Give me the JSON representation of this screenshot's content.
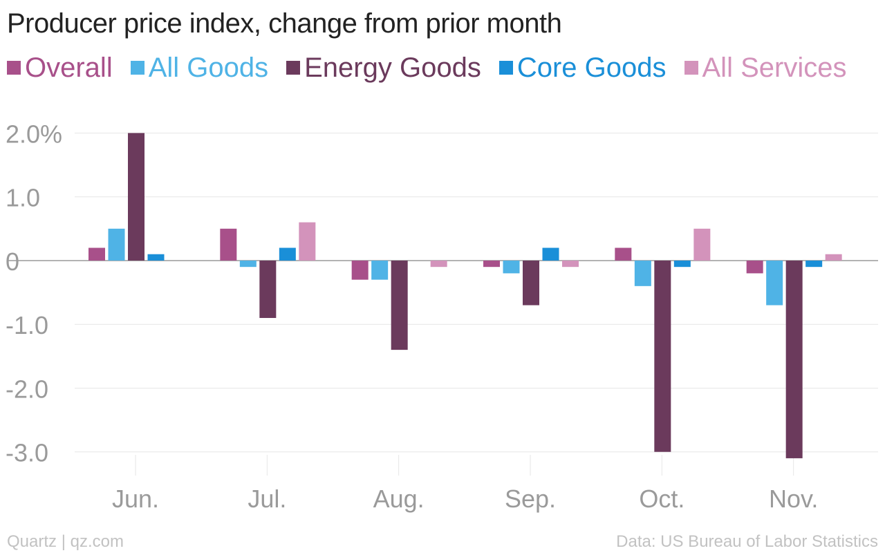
{
  "chart_data": {
    "type": "bar",
    "title": "Producer price index, change from prior month",
    "categories": [
      "Jun.",
      "Jul.",
      "Aug.",
      "Sep.",
      "Oct.",
      "Nov."
    ],
    "series": [
      {
        "name": "Overall",
        "color": "#a8508a",
        "values": [
          0.2,
          0.5,
          -0.3,
          -0.1,
          0.2,
          -0.2
        ]
      },
      {
        "name": "All Goods",
        "color": "#4fb3e6",
        "values": [
          0.5,
          -0.1,
          -0.3,
          -0.2,
          -0.4,
          -0.7
        ]
      },
      {
        "name": "Energy Goods",
        "color": "#6b3a5c",
        "values": [
          2.0,
          -0.9,
          -1.4,
          -0.7,
          -3.0,
          -3.1
        ]
      },
      {
        "name": "Core Goods",
        "color": "#1a8fd8",
        "values": [
          0.1,
          0.2,
          0.0,
          0.2,
          -0.1,
          -0.1
        ]
      },
      {
        "name": "All Services",
        "color": "#d393bb",
        "values": [
          0.0,
          0.6,
          -0.1,
          -0.1,
          0.5,
          0.1
        ]
      }
    ],
    "yticks": [
      {
        "value": 2.0,
        "label": "2.0%"
      },
      {
        "value": 1.0,
        "label": "1.0"
      },
      {
        "value": 0,
        "label": "0"
      },
      {
        "value": -1.0,
        "label": "-1.0"
      },
      {
        "value": -2.0,
        "label": "-2.0"
      },
      {
        "value": -3.0,
        "label": "-3.0"
      }
    ],
    "ylim": [
      -3.35,
      2.2
    ],
    "xlabel": "",
    "ylabel": "",
    "grid": true,
    "legend_position": "top-left"
  },
  "footer": {
    "source_left": "Quartz | qz.com",
    "source_right": "Data: US Bureau of Labor Statistics"
  }
}
